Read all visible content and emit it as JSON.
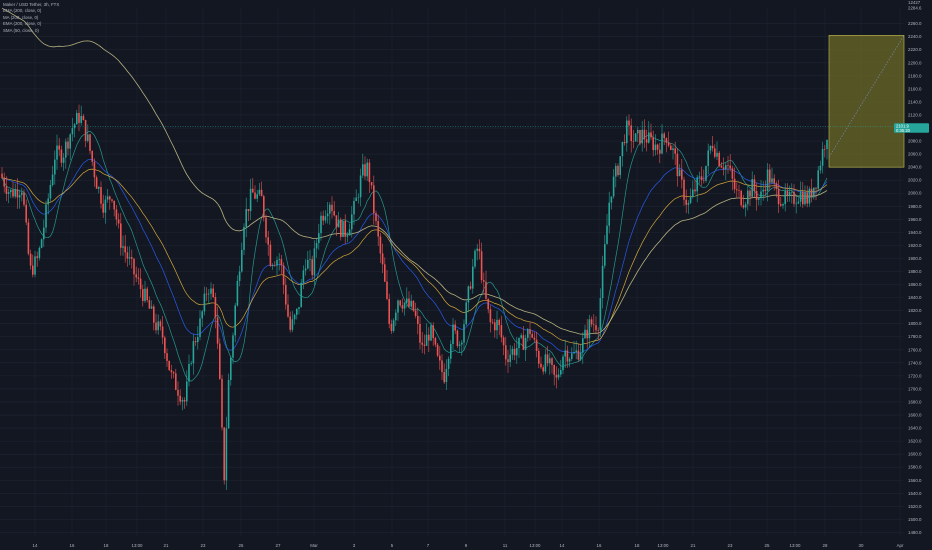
{
  "legend": {
    "title": "Maker / USD Tether, 3h, FTX",
    "lines": [
      "EMA (200, close, 0)",
      "MA (200, close, 0)",
      "EMA (200, close, 0)",
      "SMA (50, close, 0)"
    ]
  },
  "chart_data": {
    "type": "candlestick",
    "title": "Maker / USD Tether, 3h, FTX",
    "y_ticks": [
      1480,
      1500,
      1520,
      1540,
      1560,
      1580,
      1600,
      1620,
      1640,
      1660,
      1680,
      1700,
      1720,
      1740,
      1760,
      1780,
      1800,
      1820,
      1840,
      1860,
      1880,
      1900,
      1920,
      1940,
      1960,
      1980,
      2000,
      2020,
      2040,
      2060,
      2080,
      2100,
      2120,
      2140,
      2160,
      2180,
      2200,
      2220,
      2240,
      2260
    ],
    "ylim": [
      1473,
      2284
    ],
    "x_ticks": [
      "14",
      "16",
      "18",
      "13:00",
      "21",
      "23",
      "25",
      "27",
      "Mar",
      "3",
      "5",
      "7",
      "9",
      "11",
      "13:00",
      "14",
      "16",
      "18",
      "13:00",
      "21",
      "23",
      "25",
      "13:00",
      "28",
      "30",
      "Apr"
    ],
    "price_axis_top": [
      "12427",
      "2284.6"
    ],
    "last_price": "2101.9",
    "last_price_sub": "0:35:20",
    "grid": true,
    "series": [
      {
        "name": "EMA (200, close, 0)",
        "color": "#c8c28a"
      },
      {
        "name": "MA (200, close, 0)",
        "color": "#2962ff"
      },
      {
        "name": "EMA (200, close, 0)",
        "color": "#e8b73d"
      },
      {
        "name": "SMA (50, close, 0)",
        "color": "#26a69a"
      }
    ],
    "ohlc": [],
    "projection_box": {
      "y_top": 2242,
      "y_bottom": 2040
    }
  },
  "colors": {
    "background": "#131722",
    "grid": "#1f2433",
    "up": "#26a69a",
    "down": "#ef5350",
    "box_fill": "#6b6a25",
    "box_stroke": "#c9c251",
    "price_tag": "#26a69a"
  }
}
